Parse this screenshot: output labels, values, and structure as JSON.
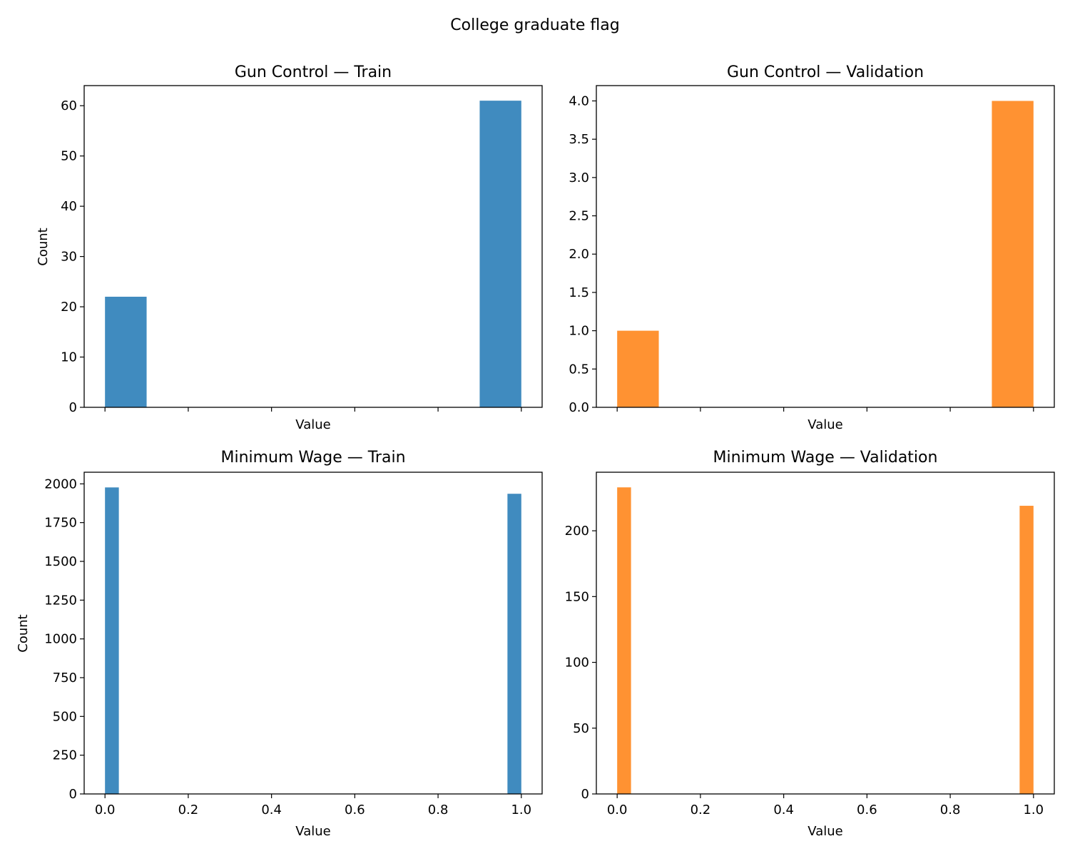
{
  "figure": {
    "suptitle": "College graduate flag"
  },
  "chart_data": [
    {
      "type": "bar",
      "title": "Gun Control — Train",
      "xlabel": "Value",
      "ylabel": "Count",
      "color": "#1f77b4",
      "bin_edges": [
        0.0,
        0.1,
        0.2,
        0.3,
        0.4,
        0.5,
        0.6,
        0.7,
        0.8,
        0.9,
        1.0
      ],
      "values": [
        22,
        0,
        0,
        0,
        0,
        0,
        0,
        0,
        0,
        61
      ],
      "xlim": [
        -0.05,
        1.05
      ],
      "ylim": [
        0,
        64
      ],
      "xticks": [
        0.0,
        0.2,
        0.4,
        0.6,
        0.8,
        1.0
      ],
      "xtick_labels": [],
      "yticks": [
        0,
        10,
        20,
        30,
        40,
        50,
        60
      ],
      "ytick_labels": [
        "0",
        "10",
        "20",
        "30",
        "40",
        "50",
        "60"
      ]
    },
    {
      "type": "bar",
      "title": "Gun Control — Validation",
      "xlabel": "Value",
      "ylabel": "",
      "color": "#ff7f0e",
      "bin_edges": [
        0.0,
        0.1,
        0.2,
        0.3,
        0.4,
        0.5,
        0.6,
        0.7,
        0.8,
        0.9,
        1.0
      ],
      "values": [
        1,
        0,
        0,
        0,
        0,
        0,
        0,
        0,
        0,
        4
      ],
      "xlim": [
        -0.05,
        1.05
      ],
      "ylim": [
        0,
        4.2
      ],
      "xticks": [
        0.0,
        0.2,
        0.4,
        0.6,
        0.8,
        1.0
      ],
      "xtick_labels": [],
      "yticks": [
        0,
        0.5,
        1,
        1.5,
        2,
        2.5,
        3,
        3.5,
        4
      ],
      "ytick_labels": [
        "0.0",
        "0.5",
        "1.0",
        "1.5",
        "2.0",
        "2.5",
        "3.0",
        "3.5",
        "4.0"
      ]
    },
    {
      "type": "bar",
      "title": "Minimum Wage — Train",
      "xlabel": "Value",
      "ylabel": "Count",
      "color": "#1f77b4",
      "bin_edges": [
        0.0,
        0.0333,
        0.9667,
        1.0
      ],
      "values": [
        1977,
        0,
        1936
      ],
      "xlim": [
        -0.05,
        1.05
      ],
      "ylim": [
        0,
        2075
      ],
      "xticks": [
        0.0,
        0.2,
        0.4,
        0.6,
        0.8,
        1.0
      ],
      "xtick_labels": [
        "0.0",
        "0.2",
        "0.4",
        "0.6",
        "0.8",
        "1.0"
      ],
      "yticks": [
        0,
        250,
        500,
        750,
        1000,
        1250,
        1500,
        1750,
        2000
      ],
      "ytick_labels": [
        "0",
        "250",
        "500",
        "750",
        "1000",
        "1250",
        "1500",
        "1750",
        "2000"
      ]
    },
    {
      "type": "bar",
      "title": "Minimum Wage — Validation",
      "xlabel": "Value",
      "ylabel": "",
      "color": "#ff7f0e",
      "bin_edges": [
        0.0,
        0.0333,
        0.9667,
        1.0
      ],
      "values": [
        233,
        0,
        219
      ],
      "xlim": [
        -0.05,
        1.05
      ],
      "ylim": [
        0,
        244.5
      ],
      "xticks": [
        0.0,
        0.2,
        0.4,
        0.6,
        0.8,
        1.0
      ],
      "xtick_labels": [
        "0.0",
        "0.2",
        "0.4",
        "0.6",
        "0.8",
        "1.0"
      ],
      "yticks": [
        0,
        50,
        100,
        150,
        200
      ],
      "ytick_labels": [
        "0",
        "50",
        "100",
        "150",
        "200"
      ]
    }
  ]
}
